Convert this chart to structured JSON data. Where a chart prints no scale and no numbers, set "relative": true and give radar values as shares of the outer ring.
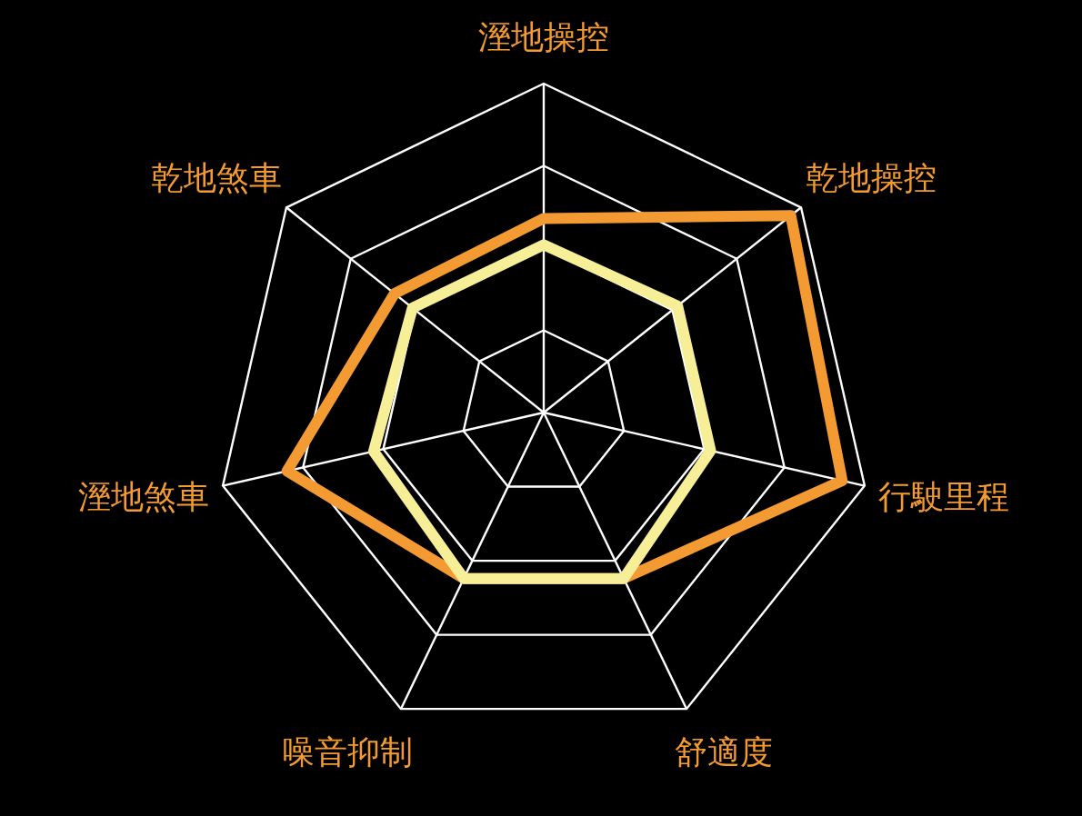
{
  "chart_data": {
    "type": "radar",
    "relative": true,
    "grid": true,
    "categories": [
      "溼地操控",
      "乾地操控",
      "行駛里程",
      "舒適度",
      "噪音抑制",
      "溼地煞車",
      "乾地煞車"
    ],
    "series": [
      {
        "color": "#f39a32",
        "values": [
          0.59,
          0.96,
          0.93,
          0.56,
          0.56,
          0.8,
          0.58
        ]
      },
      {
        "color": "#f7ee98",
        "values": [
          0.51,
          0.52,
          0.52,
          0.56,
          0.56,
          0.53,
          0.51
        ]
      }
    ]
  }
}
